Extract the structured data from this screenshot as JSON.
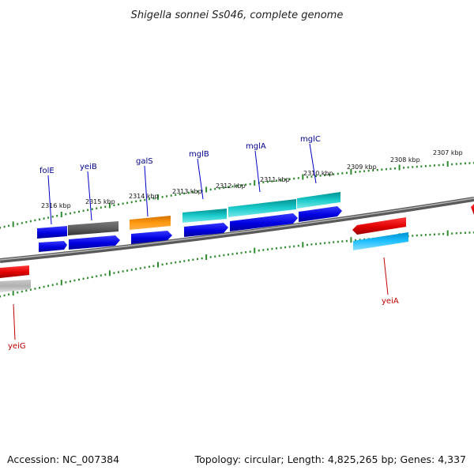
{
  "title": "Shigella sonnei Ss046, complete genome",
  "accession_text": "Accession: NC_007384",
  "topology_text": "Topology: circular; Length: 4,825,265 bp; Genes: 4,337",
  "colors": {
    "backbone": "#808080",
    "ticks": "#2e8b2e",
    "forward_label": "#00008b",
    "reverse_label": "#c00000",
    "blue": "#0000e0",
    "gray": "#555555",
    "orange": "#ff8c00",
    "cyan": "#00b5b5",
    "red": "#e00000",
    "lightblue": "#00b0f0",
    "lightgray": "#b0b0b0"
  },
  "scale_labels": [
    "2316 kbp",
    "2315 kbp",
    "2314 kbp",
    "2313 kbp",
    "2312 kbp",
    "2311 kbp",
    "2310 kbp",
    "2309 kbp",
    "2308 kbp",
    "2307 kbp"
  ],
  "forward_genes": [
    {
      "label": "folE",
      "color": "forward_label"
    },
    {
      "label": "yeiB",
      "color": "forward_label"
    },
    {
      "label": "galS",
      "color": "forward_label"
    },
    {
      "label": "mglB",
      "color": "forward_label"
    },
    {
      "label": "mglA",
      "color": "forward_label"
    },
    {
      "label": "mglC",
      "color": "forward_label"
    }
  ],
  "reverse_genes": [
    {
      "label": "yeiA",
      "color": "reverse_label"
    },
    {
      "label": "yeiG",
      "color": "reverse_label"
    }
  ]
}
